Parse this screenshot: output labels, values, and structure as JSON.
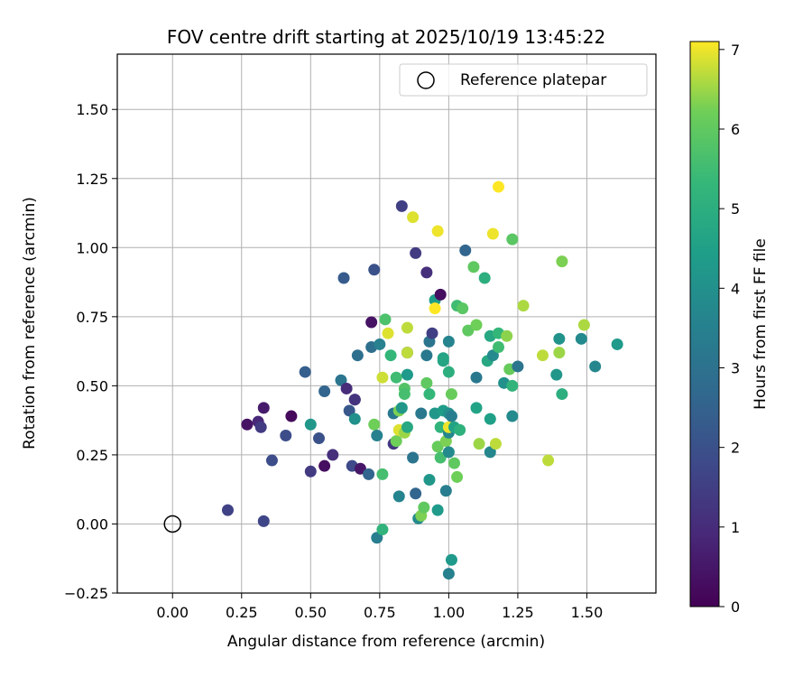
{
  "chart_data": {
    "type": "scatter",
    "title": "FOV centre drift starting at 2025/10/19 13:45:22",
    "xlabel": "Angular distance from reference (arcmin)",
    "ylabel": "Rotation from reference (arcmin)",
    "xlim": [
      -0.2,
      1.75
    ],
    "ylim": [
      -0.25,
      1.7
    ],
    "xticks": [
      0.0,
      0.25,
      0.5,
      0.75,
      1.0,
      1.25,
      1.5
    ],
    "yticks": [
      -0.25,
      0.0,
      0.25,
      0.5,
      0.75,
      1.0,
      1.25,
      1.5
    ],
    "xtick_labels": [
      "0.00",
      "0.25",
      "0.50",
      "0.75",
      "1.00",
      "1.25",
      "1.50"
    ],
    "ytick_labels": [
      "−0.25",
      "0.00",
      "0.25",
      "0.50",
      "0.75",
      "1.00",
      "1.25",
      "1.50"
    ],
    "grid": true,
    "legend": {
      "position": "top-right",
      "label": "Reference platepar"
    },
    "reference": {
      "x": 0.0,
      "y": 0.0
    },
    "colorbar": {
      "label": "Hours from first FF file",
      "min": 0,
      "max": 7.1,
      "ticks": [
        0,
        1,
        2,
        3,
        4,
        5,
        6,
        7
      ],
      "tick_labels": [
        "0",
        "1",
        "2",
        "3",
        "4",
        "5",
        "6",
        "7"
      ],
      "colormap": "viridis"
    },
    "points": [
      [
        0.2,
        0.05,
        1.6
      ],
      [
        0.33,
        0.01,
        1.7
      ],
      [
        0.27,
        0.36,
        0.4
      ],
      [
        0.31,
        0.37,
        0.9
      ],
      [
        0.33,
        0.42,
        0.6
      ],
      [
        0.32,
        0.35,
        1.4
      ],
      [
        0.36,
        0.23,
        1.9
      ],
      [
        0.41,
        0.32,
        1.9
      ],
      [
        0.43,
        0.39,
        0.2
      ],
      [
        0.48,
        0.55,
        2.4
      ],
      [
        0.5,
        0.19,
        1.4
      ],
      [
        0.5,
        0.36,
        4.2
      ],
      [
        0.53,
        0.31,
        2.0
      ],
      [
        0.55,
        0.48,
        2.6
      ],
      [
        0.55,
        0.21,
        0.3
      ],
      [
        0.58,
        0.25,
        1.1
      ],
      [
        0.61,
        0.52,
        3.1
      ],
      [
        0.62,
        0.89,
        2.3
      ],
      [
        0.63,
        0.49,
        1.0
      ],
      [
        0.64,
        0.41,
        2.2
      ],
      [
        0.65,
        0.21,
        1.8
      ],
      [
        0.66,
        0.45,
        0.6
      ],
      [
        0.66,
        0.45,
        1.2
      ],
      [
        0.66,
        0.38,
        4.0
      ],
      [
        0.67,
        0.61,
        2.9
      ],
      [
        0.68,
        0.2,
        0.5
      ],
      [
        0.71,
        0.18,
        2.6
      ],
      [
        0.72,
        0.73,
        0.4
      ],
      [
        0.72,
        0.64,
        2.9
      ],
      [
        0.73,
        0.92,
        2.0
      ],
      [
        0.73,
        0.36,
        6.2
      ],
      [
        0.74,
        0.32,
        3.5
      ],
      [
        0.74,
        -0.05,
        3.4
      ],
      [
        0.75,
        0.65,
        3.5
      ],
      [
        0.76,
        0.53,
        6.8
      ],
      [
        0.76,
        -0.02,
        5.2
      ],
      [
        0.76,
        0.18,
        5.6
      ],
      [
        0.77,
        0.74,
        5.7
      ],
      [
        0.78,
        0.69,
        6.9
      ],
      [
        0.79,
        0.61,
        5.3
      ],
      [
        0.8,
        0.4,
        3.2
      ],
      [
        0.8,
        0.29,
        1.3
      ],
      [
        0.81,
        0.53,
        5.5
      ],
      [
        0.81,
        0.3,
        6.2
      ],
      [
        0.82,
        0.1,
        3.6
      ],
      [
        0.82,
        0.34,
        6.9
      ],
      [
        0.82,
        0.41,
        6.3
      ],
      [
        0.83,
        1.15,
        1.5
      ],
      [
        0.83,
        0.42,
        4.2
      ],
      [
        0.84,
        0.49,
        5.8
      ],
      [
        0.84,
        0.47,
        5.6
      ],
      [
        0.84,
        0.33,
        6.5
      ],
      [
        0.85,
        0.71,
        6.7
      ],
      [
        0.85,
        0.62,
        0.9
      ],
      [
        0.85,
        0.62,
        6.7
      ],
      [
        0.85,
        0.54,
        4.3
      ],
      [
        0.85,
        0.35,
        4.8
      ],
      [
        0.87,
        0.24,
        3.1
      ],
      [
        0.87,
        1.11,
        6.9
      ],
      [
        0.88,
        0.98,
        1.4
      ],
      [
        0.88,
        0.11,
        2.6
      ],
      [
        0.89,
        0.02,
        3.8
      ],
      [
        0.9,
        0.03,
        6.3
      ],
      [
        0.9,
        0.4,
        3.2
      ],
      [
        0.91,
        0.06,
        6.0
      ],
      [
        0.92,
        0.91,
        1.1
      ],
      [
        0.92,
        0.51,
        6.0
      ],
      [
        0.92,
        0.61,
        3.2
      ],
      [
        0.93,
        0.47,
        5.3
      ],
      [
        0.93,
        0.16,
        4.2
      ],
      [
        0.93,
        0.66,
        3.1
      ],
      [
        0.94,
        0.69,
        1.5
      ],
      [
        0.95,
        0.81,
        4.4
      ],
      [
        0.95,
        0.78,
        7.1
      ],
      [
        0.95,
        0.4,
        4.2
      ],
      [
        0.96,
        1.06,
        7.0
      ],
      [
        0.96,
        0.28,
        6.1
      ],
      [
        0.96,
        0.05,
        4.3
      ],
      [
        0.97,
        0.83,
        0.3
      ],
      [
        0.97,
        0.35,
        5.2
      ],
      [
        0.97,
        0.24,
        5.6
      ],
      [
        0.98,
        0.6,
        4.6
      ],
      [
        0.98,
        0.59,
        4.7
      ],
      [
        0.98,
        0.41,
        4.4
      ],
      [
        0.99,
        0.12,
        3.4
      ],
      [
        0.99,
        0.3,
        6.3
      ],
      [
        1.0,
        0.66,
        3.6
      ],
      [
        1.0,
        0.55,
        5.0
      ],
      [
        1.0,
        0.4,
        4.0
      ],
      [
        1.0,
        0.33,
        3.7
      ],
      [
        1.0,
        0.26,
        3.8
      ],
      [
        1.0,
        0.35,
        7.0
      ],
      [
        1.0,
        -0.18,
        3.5
      ],
      [
        1.01,
        -0.13,
        4.3
      ],
      [
        1.01,
        0.47,
        6.1
      ],
      [
        1.01,
        0.39,
        3.4
      ],
      [
        1.02,
        0.22,
        6.0
      ],
      [
        1.02,
        0.35,
        4.6
      ],
      [
        1.03,
        0.79,
        5.5
      ],
      [
        1.03,
        0.17,
        6.2
      ],
      [
        1.04,
        0.34,
        5.1
      ],
      [
        1.05,
        0.78,
        5.9
      ],
      [
        1.06,
        0.99,
        2.6
      ],
      [
        1.07,
        0.7,
        6.0
      ],
      [
        1.09,
        0.93,
        6.0
      ],
      [
        1.1,
        0.72,
        6.2
      ],
      [
        1.1,
        0.53,
        3.2
      ],
      [
        1.1,
        0.42,
        4.6
      ],
      [
        1.11,
        0.29,
        6.5
      ],
      [
        1.13,
        0.89,
        5.0
      ],
      [
        1.14,
        0.59,
        4.8
      ],
      [
        1.15,
        0.68,
        4.8
      ],
      [
        1.15,
        0.38,
        4.5
      ],
      [
        1.15,
        0.26,
        3.7
      ],
      [
        1.16,
        1.05,
        7.0
      ],
      [
        1.16,
        0.61,
        3.8
      ],
      [
        1.17,
        0.29,
        6.7
      ],
      [
        1.18,
        0.64,
        5.5
      ],
      [
        1.18,
        0.69,
        5.3
      ],
      [
        1.18,
        1.22,
        7.1
      ],
      [
        1.2,
        0.51,
        4.0
      ],
      [
        1.21,
        0.68,
        6.4
      ],
      [
        1.22,
        0.56,
        6.1
      ],
      [
        1.23,
        1.03,
        5.9
      ],
      [
        1.23,
        0.5,
        5.2
      ],
      [
        1.23,
        0.39,
        3.8
      ],
      [
        1.25,
        0.57,
        3.1
      ],
      [
        1.27,
        0.79,
        6.6
      ],
      [
        1.34,
        0.61,
        6.7
      ],
      [
        1.36,
        0.23,
        6.7
      ],
      [
        1.39,
        0.54,
        4.2
      ],
      [
        1.4,
        0.67,
        4.1
      ],
      [
        1.4,
        0.62,
        6.5
      ],
      [
        1.41,
        0.95,
        6.3
      ],
      [
        1.41,
        0.47,
        5.0
      ],
      [
        1.48,
        0.67,
        3.8
      ],
      [
        1.49,
        0.72,
        6.6
      ],
      [
        1.53,
        0.57,
        3.7
      ],
      [
        1.61,
        0.65,
        4.3
      ]
    ]
  }
}
